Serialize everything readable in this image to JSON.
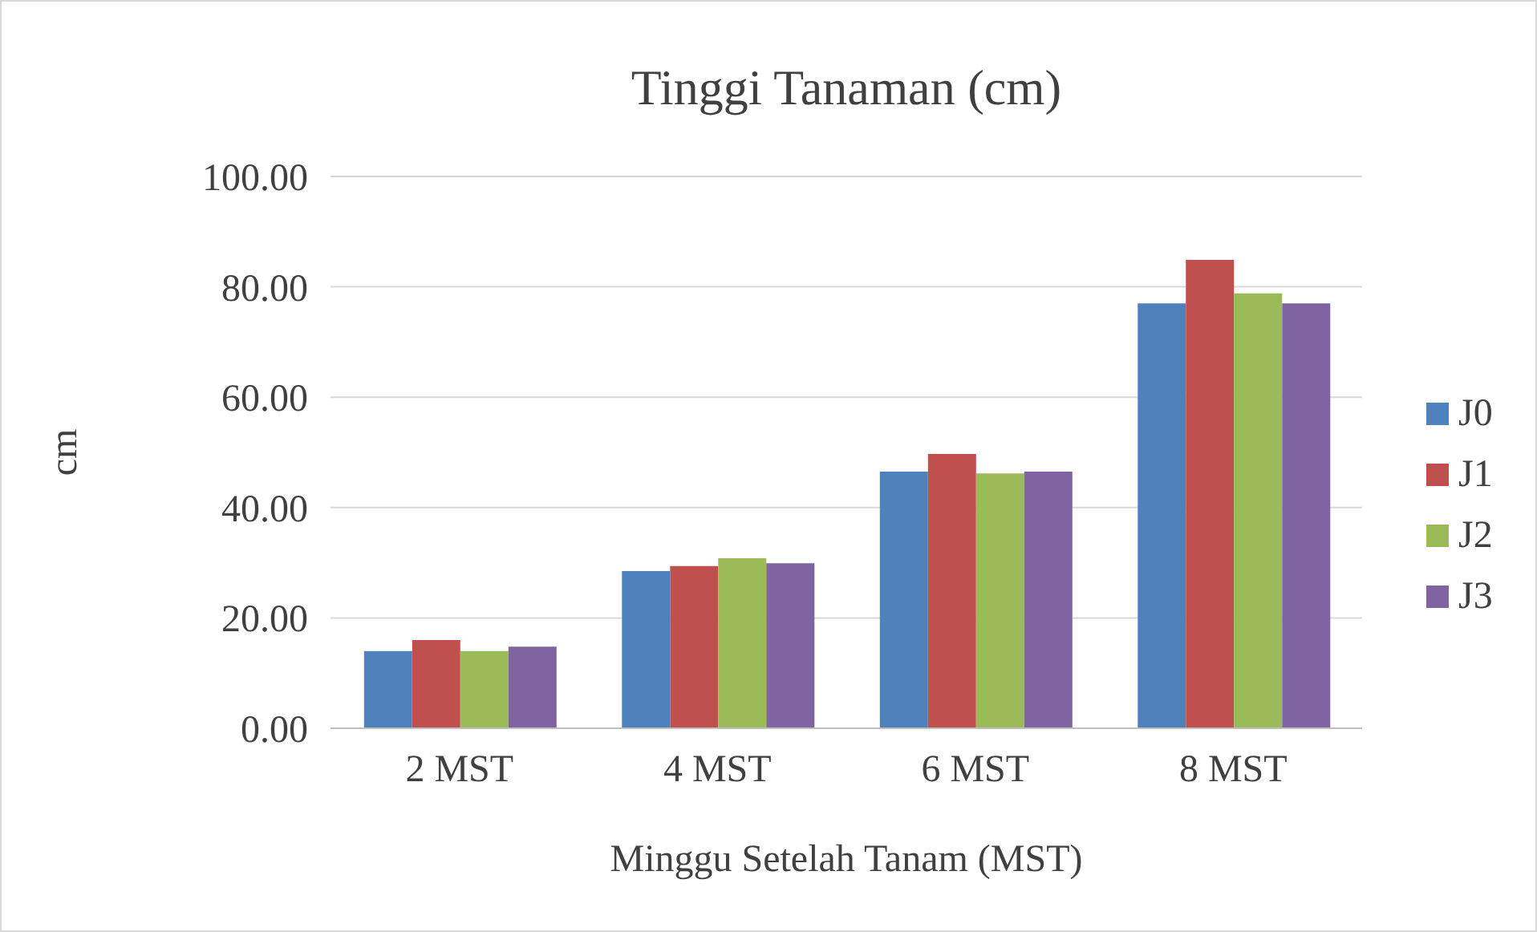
{
  "chart_data": {
    "type": "bar",
    "title": "Tinggi Tanaman (cm)",
    "xlabel": "Minggu Setelah Tanam (MST)",
    "ylabel": "cm",
    "categories": [
      "2 MST",
      "4 MST",
      "6 MST",
      "8 MST"
    ],
    "series": [
      {
        "name": "J0",
        "color": "#4f81bd",
        "values": [
          14.0,
          28.5,
          46.5,
          77.0
        ]
      },
      {
        "name": "J1",
        "color": "#c0504d",
        "values": [
          16.0,
          29.4,
          49.7,
          84.9
        ]
      },
      {
        "name": "J2",
        "color": "#9bbb59",
        "values": [
          14.0,
          30.8,
          46.2,
          78.8
        ]
      },
      {
        "name": "J3",
        "color": "#8064a2",
        "values": [
          14.8,
          29.9,
          46.5,
          77.0
        ]
      }
    ],
    "ylim": [
      0,
      100
    ],
    "yticks": [
      {
        "value": 0,
        "label": "0.00"
      },
      {
        "value": 20,
        "label": "20.00"
      },
      {
        "value": 40,
        "label": "40.00"
      },
      {
        "value": 60,
        "label": "60.00"
      },
      {
        "value": 80,
        "label": "80.00"
      },
      {
        "value": 100,
        "label": "100.00"
      }
    ],
    "grid": "y",
    "legend": "right"
  }
}
